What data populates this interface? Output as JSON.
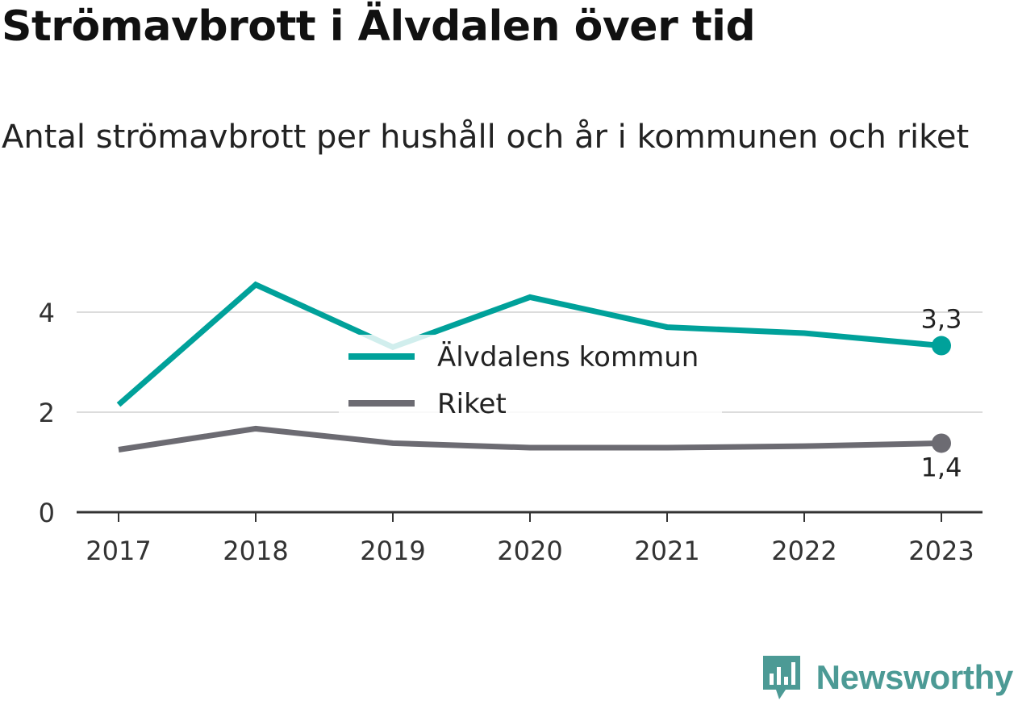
{
  "header": {
    "title": "Strömavbrott i Älvdalen över tid",
    "subtitle": "Antal strömavbrott per hushåll och år i kommunen och riket"
  },
  "brand": {
    "name": "Newsworthy",
    "icon": "newsworthy-logo-icon",
    "color": "#4c9a95"
  },
  "chart_data": {
    "type": "line",
    "title": "Strömavbrott i Älvdalen över tid",
    "subtitle": "Antal strömavbrott per hushåll och år i kommunen och riket",
    "xlabel": "",
    "ylabel": "",
    "categories": [
      "2017",
      "2018",
      "2019",
      "2020",
      "2021",
      "2022",
      "2023"
    ],
    "y_ticks": [
      {
        "value": 0,
        "label": "0"
      },
      {
        "value": 2,
        "label": "2"
      },
      {
        "value": 4,
        "label": "4"
      }
    ],
    "ylim": [
      0,
      4.6
    ],
    "grid": true,
    "legend_position": "center",
    "series": [
      {
        "name": "Älvdalens kommun",
        "color": "#00a19a",
        "values": [
          2.15,
          4.55,
          3.3,
          4.3,
          3.7,
          3.58,
          3.33
        ],
        "end_label": "3,3"
      },
      {
        "name": "Riket",
        "color": "#6c6b72",
        "values": [
          1.25,
          1.67,
          1.38,
          1.29,
          1.29,
          1.32,
          1.38
        ],
        "end_label": "1,4"
      }
    ]
  }
}
